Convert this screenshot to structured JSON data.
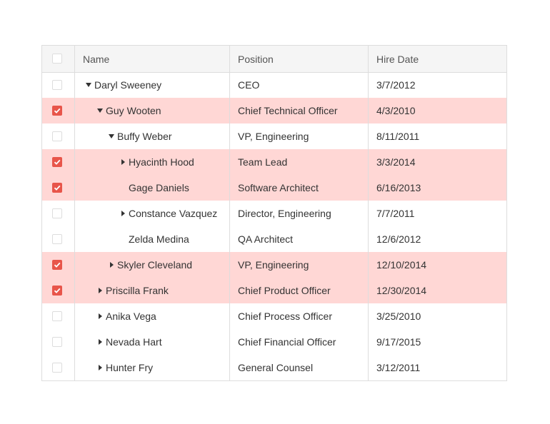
{
  "table": {
    "columns": [
      "Name",
      "Position",
      "Hire Date"
    ],
    "rows": [
      {
        "name": "Daryl Sweeney",
        "position": "CEO",
        "hire_date": "3/7/2012",
        "level": 0,
        "expander": "expanded",
        "selected": false
      },
      {
        "name": "Guy Wooten",
        "position": "Chief Technical Officer",
        "hire_date": "4/3/2010",
        "level": 1,
        "expander": "expanded",
        "selected": true
      },
      {
        "name": "Buffy Weber",
        "position": "VP, Engineering",
        "hire_date": "8/11/2011",
        "level": 2,
        "expander": "expanded",
        "selected": false
      },
      {
        "name": "Hyacinth Hood",
        "position": "Team Lead",
        "hire_date": "3/3/2014",
        "level": 3,
        "expander": "collapsed",
        "selected": true
      },
      {
        "name": "Gage Daniels",
        "position": "Software Architect",
        "hire_date": "6/16/2013",
        "level": 3,
        "expander": "none",
        "selected": true
      },
      {
        "name": "Constance Vazquez",
        "position": "Director, Engineering",
        "hire_date": "7/7/2011",
        "level": 3,
        "expander": "collapsed",
        "selected": false
      },
      {
        "name": "Zelda Medina",
        "position": "QA Architect",
        "hire_date": "12/6/2012",
        "level": 3,
        "expander": "none",
        "selected": false
      },
      {
        "name": "Skyler Cleveland",
        "position": "VP, Engineering",
        "hire_date": "12/10/2014",
        "level": 2,
        "expander": "collapsed",
        "selected": true
      },
      {
        "name": "Priscilla Frank",
        "position": "Chief Product Officer",
        "hire_date": "12/30/2014",
        "level": 1,
        "expander": "collapsed",
        "selected": true
      },
      {
        "name": "Anika Vega",
        "position": "Chief Process Officer",
        "hire_date": "3/25/2010",
        "level": 1,
        "expander": "collapsed",
        "selected": false
      },
      {
        "name": "Nevada Hart",
        "position": "Chief Financial Officer",
        "hire_date": "9/17/2015",
        "level": 1,
        "expander": "collapsed",
        "selected": false
      },
      {
        "name": "Hunter Fry",
        "position": "General Counsel",
        "hire_date": "3/12/2011",
        "level": 1,
        "expander": "collapsed",
        "selected": false
      }
    ]
  }
}
